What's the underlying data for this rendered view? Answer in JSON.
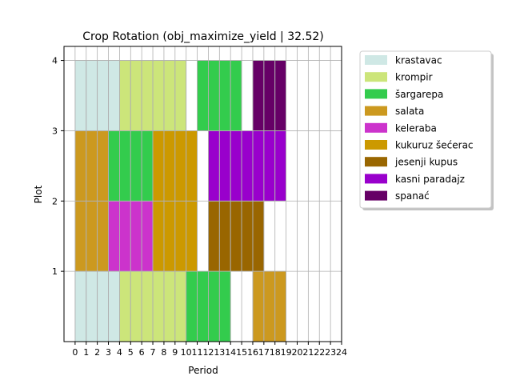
{
  "chart_data": {
    "type": "bar",
    "title": "Crop Rotation (obj_maximize_yield | 32.52)",
    "xlabel": "Period",
    "ylabel": "Plot",
    "xlim": [
      -1,
      24
    ],
    "ylim": [
      0,
      4.2
    ],
    "xticks": [
      0,
      1,
      2,
      3,
      4,
      5,
      6,
      7,
      8,
      9,
      10,
      11,
      12,
      13,
      14,
      15,
      16,
      17,
      18,
      19,
      20,
      21,
      22,
      23,
      24
    ],
    "yticks": [
      1,
      2,
      3,
      4
    ],
    "grid": true,
    "legend_position": "outside-top-right",
    "crops": [
      {
        "name": "krastavac",
        "color": "#cfe8e5"
      },
      {
        "name": "krompir",
        "color": "#cce57a"
      },
      {
        "name": "šargarepa",
        "color": "#33cc4d"
      },
      {
        "name": "salata",
        "color": "#cc991f"
      },
      {
        "name": "keleraba",
        "color": "#cc33cc"
      },
      {
        "name": "kukuruz šećerac",
        "color": "#cc9900"
      },
      {
        "name": "jesenji kupus",
        "color": "#996600"
      },
      {
        "name": "kasni paradajz",
        "color": "#9900cc"
      },
      {
        "name": "spanać",
        "color": "#660066"
      }
    ],
    "plantings": [
      {
        "plot": 1,
        "crop": "krastavac",
        "start": 0,
        "end": 4
      },
      {
        "plot": 1,
        "crop": "krompir",
        "start": 4,
        "end": 10
      },
      {
        "plot": 1,
        "crop": "šargarepa",
        "start": 10,
        "end": 14
      },
      {
        "plot": 1,
        "crop": "salata",
        "start": 16,
        "end": 19
      },
      {
        "plot": 2,
        "crop": "salata",
        "start": 0,
        "end": 3
      },
      {
        "plot": 2,
        "crop": "keleraba",
        "start": 3,
        "end": 7
      },
      {
        "plot": 2,
        "crop": "kukuruz šećerac",
        "start": 7,
        "end": 11
      },
      {
        "plot": 2,
        "crop": "jesenji kupus",
        "start": 12,
        "end": 17
      },
      {
        "plot": 3,
        "crop": "salata",
        "start": 0,
        "end": 3
      },
      {
        "plot": 3,
        "crop": "šargarepa",
        "start": 3,
        "end": 7
      },
      {
        "plot": 3,
        "crop": "kukuruz šećerac",
        "start": 7,
        "end": 11
      },
      {
        "plot": 3,
        "crop": "kasni paradajz",
        "start": 12,
        "end": 19
      },
      {
        "plot": 4,
        "crop": "krastavac",
        "start": 0,
        "end": 4
      },
      {
        "plot": 4,
        "crop": "krompir",
        "start": 4,
        "end": 10
      },
      {
        "plot": 4,
        "crop": "šargarepa",
        "start": 11,
        "end": 15
      },
      {
        "plot": 4,
        "crop": "spanać",
        "start": 16,
        "end": 19
      }
    ]
  }
}
